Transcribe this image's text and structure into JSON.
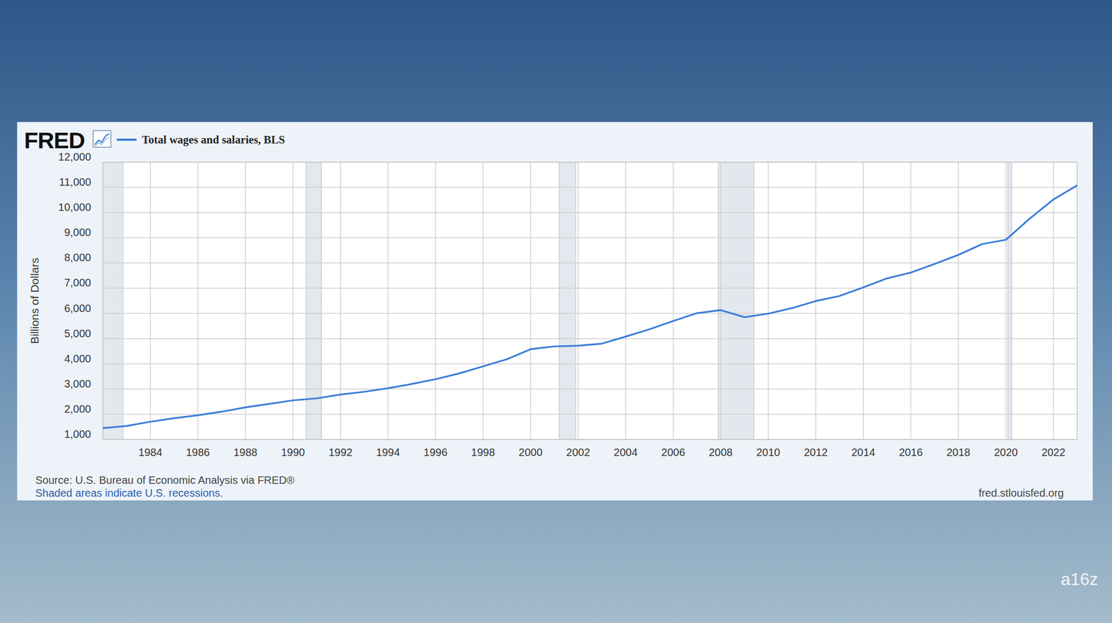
{
  "chart_data": {
    "type": "line",
    "logo": "FRED",
    "y_label": "Billions of Dollars",
    "source": "Source: U.S. Bureau of Economic Analysis via FRED®",
    "note": "Shaded areas indicate U.S. recessions.",
    "url": "fred.stlouisfed.org",
    "watermark": "a16z",
    "x": [
      1982,
      1983,
      1984,
      1985,
      1986,
      1987,
      1988,
      1989,
      1990,
      1991,
      1992,
      1993,
      1994,
      1995,
      1996,
      1997,
      1998,
      1999,
      2000,
      2001,
      2002,
      2003,
      2004,
      2005,
      2006,
      2007,
      2008,
      2009,
      2010,
      2011,
      2012,
      2013,
      2014,
      2015,
      2016,
      2017,
      2018,
      2019,
      2020,
      2021,
      2022,
      2023
    ],
    "series": [
      {
        "name": "Total wages and salaries, BLS",
        "color": "#3b7dd8",
        "values": [
          1450,
          1535,
          1700,
          1840,
          1960,
          2100,
          2270,
          2410,
          2550,
          2630,
          2780,
          2890,
          3030,
          3200,
          3390,
          3620,
          3900,
          4180,
          4580,
          4690,
          4720,
          4800,
          5080,
          5370,
          5700,
          6010,
          6130,
          5850,
          5990,
          6210,
          6490,
          6690,
          7030,
          7390,
          7620,
          7960,
          8320,
          8750,
          8920,
          9760,
          10520,
          11080
        ]
      }
    ],
    "xlim": [
      1982,
      2023
    ],
    "ylim": [
      1000,
      12000
    ],
    "xticks": [
      1984,
      1986,
      1988,
      1990,
      1992,
      1994,
      1996,
      1998,
      2000,
      2002,
      2004,
      2006,
      2008,
      2010,
      2012,
      2014,
      2016,
      2018,
      2020,
      2022
    ],
    "yticks": [
      {
        "value": 1000,
        "label": "1,000"
      },
      {
        "value": 2000,
        "label": "2,000"
      },
      {
        "value": 3000,
        "label": "3,000"
      },
      {
        "value": 4000,
        "label": "4,000"
      },
      {
        "value": 5000,
        "label": "5,000"
      },
      {
        "value": 6000,
        "label": "6,000"
      },
      {
        "value": 7000,
        "label": "7,000"
      },
      {
        "value": 8000,
        "label": "8,000"
      },
      {
        "value": 9000,
        "label": "9,000"
      },
      {
        "value": 10000,
        "label": "10,000"
      },
      {
        "value": 11000,
        "label": "11,000"
      },
      {
        "value": 12000,
        "label": "12,000"
      }
    ],
    "grid": true,
    "legend": "top-left",
    "recessions": [
      [
        1982,
        1982.85
      ],
      [
        1990.55,
        1991.2
      ],
      [
        2001.2,
        2001.9
      ],
      [
        2007.9,
        2009.4
      ],
      [
        2020.08,
        2020.25
      ]
    ]
  }
}
